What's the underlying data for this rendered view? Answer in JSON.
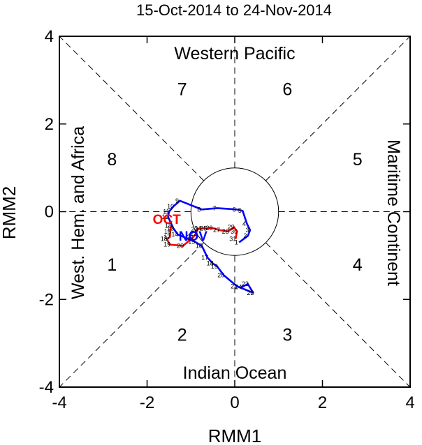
{
  "chart_data": {
    "type": "line",
    "title": "15-Oct-2014 to 24-Nov-2014",
    "xlabel": "RMM1",
    "ylabel": "RMM2",
    "xlim": [
      -4,
      4
    ],
    "ylim": [
      -4,
      4
    ],
    "xticks": [
      "-4",
      "-2",
      "0",
      "2",
      "4"
    ],
    "yticks": [
      "-4",
      "-2",
      "0",
      "2",
      "4"
    ],
    "regions": {
      "top": "Western Pacific",
      "bottom": "Indian Ocean",
      "left": "West. Hem. and Africa",
      "right": "Maritime Continent"
    },
    "phases": [
      "1",
      "2",
      "3",
      "4",
      "5",
      "6",
      "7",
      "8"
    ],
    "unit_circle_radius": 1,
    "grid": "dashed octant lines",
    "colors": {
      "oct": "#ff0000",
      "nov": "#0000ff",
      "frame": "#000000"
    },
    "series": [
      {
        "name": "OCT",
        "label_point": [
          -1.55,
          -0.17
        ],
        "points": [
          {
            "day": 15,
            "x": -1.45,
            "y": -0.32
          },
          {
            "day": 16,
            "x": -1.47,
            "y": -0.45
          },
          {
            "day": 17,
            "x": -1.48,
            "y": -0.58
          },
          {
            "day": 18,
            "x": -1.55,
            "y": -0.62
          },
          {
            "day": 19,
            "x": -1.48,
            "y": -0.75
          },
          {
            "day": 20,
            "x": -1.18,
            "y": -0.78
          },
          {
            "day": 21,
            "x": -0.95,
            "y": -0.58
          },
          {
            "day": 22,
            "x": -0.88,
            "y": -0.5
          },
          {
            "day": 23,
            "x": -0.85,
            "y": -0.4
          },
          {
            "day": 24,
            "x": -0.78,
            "y": -0.38
          },
          {
            "day": 25,
            "x": -0.65,
            "y": -0.38
          },
          {
            "day": 26,
            "x": -0.52,
            "y": -0.37
          },
          {
            "day": 27,
            "x": -0.35,
            "y": -0.42
          },
          {
            "day": 28,
            "x": -0.15,
            "y": -0.45
          },
          {
            "day": 29,
            "x": -0.02,
            "y": -0.35
          },
          {
            "day": 30,
            "x": 0.05,
            "y": -0.45
          },
          {
            "day": 31,
            "x": 0.02,
            "y": -0.62
          }
        ]
      },
      {
        "name": "NOV",
        "label_point": [
          -0.95,
          -0.55
        ],
        "points": [
          {
            "day": 1,
            "x": 0.1,
            "y": -0.7
          },
          {
            "day": 2,
            "x": 0.3,
            "y": -0.55
          },
          {
            "day": 3,
            "x": 0.35,
            "y": -0.42
          },
          {
            "day": 4,
            "x": 0.28,
            "y": -0.28
          },
          {
            "day": 5,
            "x": 0.18,
            "y": 0.02
          },
          {
            "day": 6,
            "x": 0.05,
            "y": 0.05
          },
          {
            "day": 7,
            "x": -0.4,
            "y": 0.08
          },
          {
            "day": 8,
            "x": -0.75,
            "y": 0.05
          },
          {
            "day": 9,
            "x": -1.25,
            "y": 0.25
          },
          {
            "day": 10,
            "x": -1.4,
            "y": 0.12
          },
          {
            "day": 11,
            "x": -1.5,
            "y": 0.0
          },
          {
            "day": 12,
            "x": -1.52,
            "y": -0.12
          },
          {
            "day": 13,
            "x": -1.4,
            "y": -0.38
          },
          {
            "day": 14,
            "x": -1.3,
            "y": -0.52
          },
          {
            "day": 15,
            "x": -0.92,
            "y": -0.68
          },
          {
            "day": 16,
            "x": -0.75,
            "y": -0.78
          },
          {
            "day": 17,
            "x": -0.62,
            "y": -1.05
          },
          {
            "day": 18,
            "x": -0.5,
            "y": -1.18
          },
          {
            "day": 19,
            "x": -0.4,
            "y": -1.25
          },
          {
            "day": 20,
            "x": -0.25,
            "y": -1.45
          },
          {
            "day": 21,
            "x": 0.05,
            "y": -1.7
          },
          {
            "day": 22,
            "x": 0.42,
            "y": -1.85
          },
          {
            "day": 23,
            "x": 0.3,
            "y": -1.65
          },
          {
            "day": 24,
            "x": 0.15,
            "y": -1.72
          }
        ]
      }
    ]
  }
}
